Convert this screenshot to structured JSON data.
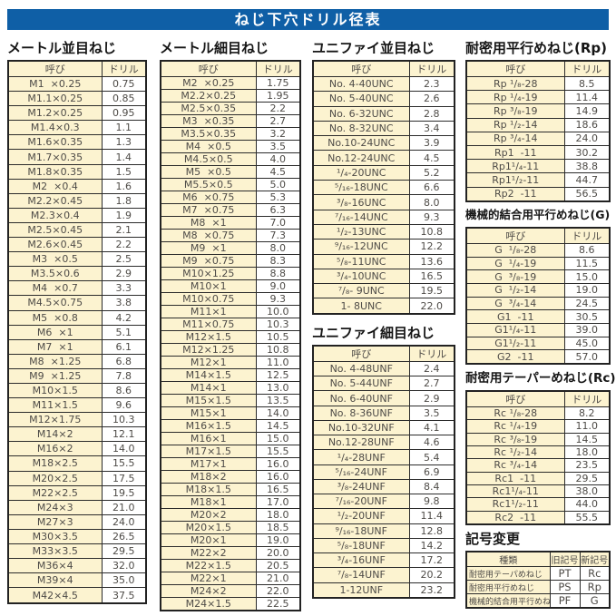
{
  "title": "ねじ下穴ドリル径表",
  "colors": {
    "title_bar_bg": "#0F5FA6",
    "title_bar_text": "#FFFFFF",
    "cell_cream_bg": "#FCF3D0",
    "cell_white_bg": "#FFFFFF",
    "cell_text": "#4E4B47",
    "border": "#2B2B2B"
  },
  "tables": [
    {
      "id": "metric_coarse",
      "title": "メートル並目ねじ",
      "headers": [
        "呼び",
        "ドリル"
      ],
      "rows": [
        [
          "M1  ×0.25",
          "0.75"
        ],
        [
          "M1.1×0.25",
          "0.85"
        ],
        [
          "M1.2×0.25",
          "0.95"
        ],
        [
          "M1.4×0.3",
          "1.1"
        ],
        [
          "M1.6×0.35",
          "1.3"
        ],
        [
          "M1.7×0.35",
          "1.4"
        ],
        [
          "M1.8×0.35",
          "1.5"
        ],
        [
          "M2  ×0.4",
          "1.6"
        ],
        [
          "M2.2×0.45",
          "1.8"
        ],
        [
          "M2.3×0.4",
          "1.9"
        ],
        [
          "M2.5×0.45",
          "2.1"
        ],
        [
          "M2.6×0.45",
          "2.2"
        ],
        [
          "M3  ×0.5",
          "2.5"
        ],
        [
          "M3.5×0.6",
          "2.9"
        ],
        [
          "M4  ×0.7",
          "3.3"
        ],
        [
          "M4.5×0.75",
          "3.8"
        ],
        [
          "M5  ×0.8",
          "4.2"
        ],
        [
          "M6  ×1",
          "5.1"
        ],
        [
          "M7  ×1",
          "6.1"
        ],
        [
          "M8  ×1.25",
          "6.8"
        ],
        [
          "M9  ×1.25",
          "7.8"
        ],
        [
          "M10×1.5",
          "8.6"
        ],
        [
          "M11×1.5",
          "9.6"
        ],
        [
          "M12×1.75",
          "10.3"
        ],
        [
          "M14×2",
          "12.1"
        ],
        [
          "M16×2",
          "14.0"
        ],
        [
          "M18×2.5",
          "15.5"
        ],
        [
          "M20×2.5",
          "17.5"
        ],
        [
          "M22×2.5",
          "19.5"
        ],
        [
          "M24×3",
          "21.0"
        ],
        [
          "M27×3",
          "24.0"
        ],
        [
          "M30×3.5",
          "26.5"
        ],
        [
          "M33×3.5",
          "29.5"
        ],
        [
          "M36×4",
          "32.0"
        ],
        [
          "M39×4",
          "35.0"
        ],
        [
          "M42×4.5",
          "37.5"
        ]
      ]
    },
    {
      "id": "metric_fine",
      "title": "メートル細目ねじ",
      "headers": [
        "呼び",
        "ドリル"
      ],
      "rows": [
        [
          "M2  ×0.25",
          "1.75"
        ],
        [
          "M2.2×0.25",
          "1.95"
        ],
        [
          "M2.5×0.35",
          "2.2"
        ],
        [
          "M3  ×0.35",
          "2.7"
        ],
        [
          "M3.5×0.35",
          "3.2"
        ],
        [
          "M4  ×0.5",
          "3.5"
        ],
        [
          "M4.5×0.5",
          "4.0"
        ],
        [
          "M5  ×0.5",
          "4.5"
        ],
        [
          "M5.5×0.5",
          "5.0"
        ],
        [
          "M6  ×0.75",
          "5.3"
        ],
        [
          "M7  ×0.75",
          "6.3"
        ],
        [
          "M8  ×1",
          "7.0"
        ],
        [
          "M8  ×0.75",
          "7.3"
        ],
        [
          "M9  ×1",
          "8.0"
        ],
        [
          "M9  ×0.75",
          "8.3"
        ],
        [
          "M10×1.25",
          "8.8"
        ],
        [
          "M10×1",
          "9.0"
        ],
        [
          "M10×0.75",
          "9.3"
        ],
        [
          "M11×1",
          "10.0"
        ],
        [
          "M11×0.75",
          "10.3"
        ],
        [
          "M12×1.5",
          "10.5"
        ],
        [
          "M12×1.25",
          "10.8"
        ],
        [
          "M12×1",
          "11.0"
        ],
        [
          "M14×1.5",
          "12.5"
        ],
        [
          "M14×1",
          "13.0"
        ],
        [
          "M15×1.5",
          "13.5"
        ],
        [
          "M15×1",
          "14.0"
        ],
        [
          "M16×1.5",
          "14.5"
        ],
        [
          "M16×1",
          "15.0"
        ],
        [
          "M17×1.5",
          "15.5"
        ],
        [
          "M17×1",
          "16.0"
        ],
        [
          "M18×2",
          "16.0"
        ],
        [
          "M18×1.5",
          "16.5"
        ],
        [
          "M18×1",
          "17.0"
        ],
        [
          "M20×2",
          "18.0"
        ],
        [
          "M20×1.5",
          "18.5"
        ],
        [
          "M20×1",
          "19.0"
        ],
        [
          "M22×2",
          "20.0"
        ],
        [
          "M22×1.5",
          "20.5"
        ],
        [
          "M22×1",
          "21.0"
        ],
        [
          "M24×2",
          "22.0"
        ],
        [
          "M24×1.5",
          "22.5"
        ]
      ]
    },
    {
      "id": "unified_coarse",
      "title": "ユニファイ並目ねじ",
      "headers": [
        "呼び",
        "ドリル"
      ],
      "rows": [
        [
          "No. 4-40UNC",
          "2.3"
        ],
        [
          "No. 5-40UNC",
          "2.6"
        ],
        [
          "No. 6-32UNC",
          "2.8"
        ],
        [
          "No. 8-32UNC",
          "3.4"
        ],
        [
          "No.10-24UNC",
          "3.9"
        ],
        [
          "No.12-24UNC",
          "4.5"
        ],
        [
          "¹/₄-20UNC",
          "5.2"
        ],
        [
          "⁵/₁₆-18UNC",
          "6.6"
        ],
        [
          "³/₈-16UNC",
          "8.0"
        ],
        [
          "⁷/₁₆-14UNC",
          "9.3"
        ],
        [
          "¹/₂-13UNC",
          "10.8"
        ],
        [
          "⁹/₁₆-12UNC",
          "12.2"
        ],
        [
          "⁵/₈-11UNC",
          "13.6"
        ],
        [
          "³/₄-10UNC",
          "16.5"
        ],
        [
          "⁷/₈- 9UNC",
          "19.5"
        ],
        [
          "1- 8UNC",
          "22.0"
        ]
      ]
    },
    {
      "id": "unified_fine",
      "title": "ユニファイ細目ねじ",
      "headers": [
        "呼び",
        "ドリル"
      ],
      "rows": [
        [
          "No. 4-48UNF",
          "2.4"
        ],
        [
          "No. 5-44UNF",
          "2.7"
        ],
        [
          "No. 6-40UNF",
          "2.9"
        ],
        [
          "No. 8-36UNF",
          "3.5"
        ],
        [
          "No.10-32UNF",
          "4.1"
        ],
        [
          "No.12-28UNF",
          "4.6"
        ],
        [
          "¹/₄-28UNF",
          "5.4"
        ],
        [
          "⁵/₁₆-24UNF",
          "6.9"
        ],
        [
          "³/₈-24UNF",
          "8.4"
        ],
        [
          "⁷/₁₆-20UNF",
          "9.8"
        ],
        [
          "¹/₂-20UNF",
          "11.4"
        ],
        [
          "⁹/₁₆-18UNF",
          "12.8"
        ],
        [
          "⁵/₈-18UNF",
          "14.2"
        ],
        [
          "³/₄-16UNF",
          "17.2"
        ],
        [
          "⁷/₈-14UNF",
          "20.2"
        ],
        [
          "1-12UNF",
          "23.2"
        ]
      ]
    },
    {
      "id": "rp",
      "title": "耐密用平行めねじ(Rp)",
      "headers": [
        "呼び",
        "ドリル"
      ],
      "rows": [
        [
          "Rp ¹/₈-28",
          "8.5"
        ],
        [
          "Rp ¹/₄-19",
          "11.4"
        ],
        [
          "Rp ³/₈-19",
          "14.9"
        ],
        [
          "Rp ¹/₂-14",
          "18.6"
        ],
        [
          "Rp ³/₄-14",
          "24.0"
        ],
        [
          "Rp1  -11",
          "30.2"
        ],
        [
          "Rp1¹/₄-11",
          "38.8"
        ],
        [
          "Rp1¹/₂-11",
          "44.7"
        ],
        [
          "Rp2  -11",
          "56.5"
        ]
      ]
    },
    {
      "id": "g",
      "title": "機械的結合用平行めねじ(G)",
      "headers": [
        "呼び",
        "ドリル"
      ],
      "rows": [
        [
          "G  ¹/₈-28",
          "8.6"
        ],
        [
          "G  ¹/₄-19",
          "11.5"
        ],
        [
          "G  ³/₈-19",
          "15.0"
        ],
        [
          "G  ¹/₂-14",
          "19.0"
        ],
        [
          "G  ³/₄-14",
          "24.5"
        ],
        [
          "G1  -11",
          "30.5"
        ],
        [
          "G1¹/₄-11",
          "39.0"
        ],
        [
          "G1¹/₂-11",
          "45.0"
        ],
        [
          "G2  -11",
          "57.0"
        ]
      ]
    },
    {
      "id": "rc",
      "title": "耐密用テーパーめねじ(Rc)",
      "headers": [
        "呼び",
        "ドリル"
      ],
      "rows": [
        [
          "Rc ¹/₈-28",
          "8.2"
        ],
        [
          "Rc ¹/₄-19",
          "11.0"
        ],
        [
          "Rc ³/₈-19",
          "14.5"
        ],
        [
          "Rc ¹/₂-14",
          "18.0"
        ],
        [
          "Rc ³/₄-14",
          "23.5"
        ],
        [
          "Rc1  -11",
          "29.5"
        ],
        [
          "Rc1¹/₄-11",
          "38.0"
        ],
        [
          "Rc1¹/₂-11",
          "44.0"
        ],
        [
          "Rc2  -11",
          "55.5"
        ]
      ]
    },
    {
      "id": "symbol_change",
      "title": "記号変更",
      "headers": [
        "種類",
        "旧記号",
        "新記号"
      ],
      "rows": [
        [
          "耐密用テーパめねじ",
          "PT",
          "Rc"
        ],
        [
          "耐密用平行めねじ",
          "PS",
          "Rp"
        ],
        [
          "機械的結合用平行めねじ",
          "PF",
          "G"
        ]
      ]
    }
  ]
}
